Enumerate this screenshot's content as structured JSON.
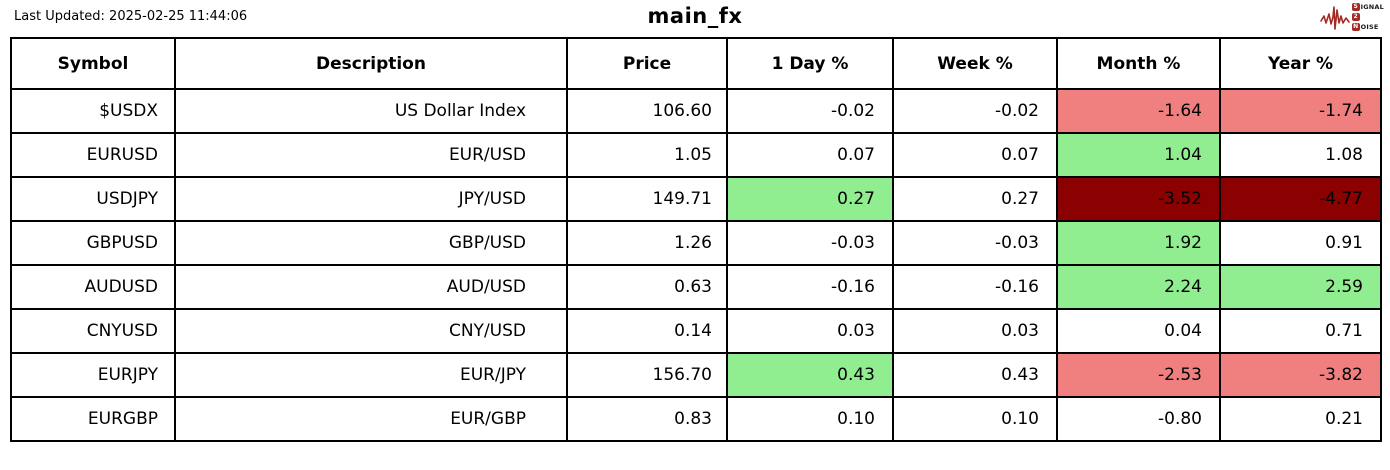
{
  "page": {
    "last_updated": "Last Updated: 2025-02-25 11:44:06",
    "title": "main_fx"
  },
  "logo": {
    "word1_initial": "S",
    "word1_rest": "IGNAL",
    "word2": "2",
    "word3_initial": "N",
    "word3_rest": "OISE"
  },
  "colors": {
    "positive_bg": "#90EE90",
    "negative_bg": "#F08080",
    "strong_negative_bg": "#8B0000",
    "logo_red": "#A42A25",
    "border": "#000000"
  },
  "chart_data": {
    "type": "table",
    "title": "main_fx",
    "columns": [
      "Symbol",
      "Description",
      "Price",
      "1 Day %",
      "Week %",
      "Month %",
      "Year %"
    ],
    "col_keys": [
      "symbol",
      "description",
      "price",
      "day_pct",
      "week_pct",
      "month_pct",
      "year_pct"
    ],
    "rows": [
      {
        "symbol": "$USDX",
        "description": "US Dollar Index",
        "price": "106.60",
        "day_pct": "-0.02",
        "week_pct": "-0.02",
        "month_pct": "-1.64",
        "year_pct": "-1.74",
        "highlights": {
          "month_pct": "neg",
          "year_pct": "neg"
        }
      },
      {
        "symbol": "EURUSD",
        "description": "EUR/USD",
        "price": "1.05",
        "day_pct": "0.07",
        "week_pct": "0.07",
        "month_pct": "1.04",
        "year_pct": "1.08",
        "highlights": {
          "month_pct": "pos"
        }
      },
      {
        "symbol": "USDJPY",
        "description": "JPY/USD",
        "price": "149.71",
        "day_pct": "0.27",
        "week_pct": "0.27",
        "month_pct": "-3.52",
        "year_pct": "-4.77",
        "highlights": {
          "day_pct": "pos",
          "month_pct": "strongneg",
          "year_pct": "strongneg"
        }
      },
      {
        "symbol": "GBPUSD",
        "description": "GBP/USD",
        "price": "1.26",
        "day_pct": "-0.03",
        "week_pct": "-0.03",
        "month_pct": "1.92",
        "year_pct": "0.91",
        "highlights": {
          "month_pct": "pos"
        }
      },
      {
        "symbol": "AUDUSD",
        "description": "AUD/USD",
        "price": "0.63",
        "day_pct": "-0.16",
        "week_pct": "-0.16",
        "month_pct": "2.24",
        "year_pct": "2.59",
        "highlights": {
          "month_pct": "pos",
          "year_pct": "pos"
        }
      },
      {
        "symbol": "CNYUSD",
        "description": "CNY/USD",
        "price": "0.14",
        "day_pct": "0.03",
        "week_pct": "0.03",
        "month_pct": "0.04",
        "year_pct": "0.71",
        "highlights": {}
      },
      {
        "symbol": "EURJPY",
        "description": "EUR/JPY",
        "price": "156.70",
        "day_pct": "0.43",
        "week_pct": "0.43",
        "month_pct": "-2.53",
        "year_pct": "-3.82",
        "highlights": {
          "day_pct": "pos",
          "month_pct": "neg",
          "year_pct": "neg"
        }
      },
      {
        "symbol": "EURGBP",
        "description": "EUR/GBP",
        "price": "0.83",
        "day_pct": "0.10",
        "week_pct": "0.10",
        "month_pct": "-0.80",
        "year_pct": "0.21",
        "highlights": {}
      }
    ]
  }
}
